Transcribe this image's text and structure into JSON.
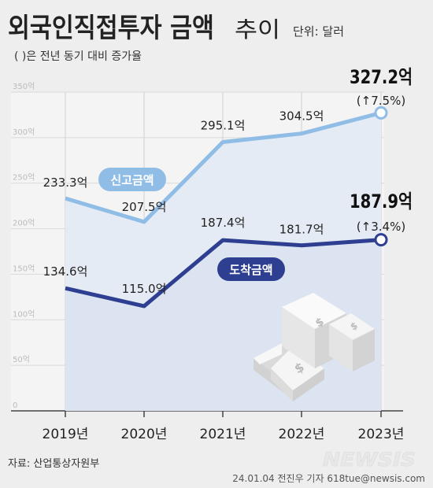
{
  "header": {
    "title": "외국인직접투자 금액",
    "title_suffix": "추이",
    "unit": "단위: 달러",
    "note": "( )은 전년 동기 대비 증가율"
  },
  "footer": {
    "source": "자료: 산업통상자원부",
    "credit": "24.01.04 전진우 기자 618tue@newsis.com",
    "logo": "NEWSIS"
  },
  "colors": {
    "background": "#eeeeee",
    "plot_fill": "#dde6f1",
    "series_reported": "#8fbde6",
    "series_arrived": "#2e3f91",
    "up_arrow": "#e11d1d",
    "axis_text": "#bbbbbb"
  },
  "chart_data": {
    "type": "line",
    "categories": [
      "2019년",
      "2020년",
      "2021년",
      "2022년",
      "2023년"
    ],
    "ylim": [
      0,
      350
    ],
    "yticks": [
      "0",
      "50억",
      "100억",
      "150억",
      "200억",
      "250억",
      "300억",
      "350억"
    ],
    "series": [
      {
        "name": "신고금액",
        "values": [
          233.3,
          207.5,
          295.1,
          304.5,
          327.2
        ],
        "labels": [
          "233.3억",
          "207.5억",
          "295.1억",
          "304.5억",
          "327.2억"
        ],
        "change_label": "(↑7.5%)"
      },
      {
        "name": "도착금액",
        "values": [
          134.6,
          115.0,
          187.4,
          181.7,
          187.9
        ],
        "labels": [
          "134.6억",
          "115.0억",
          "187.4억",
          "181.7억",
          "187.9억"
        ],
        "change_label": "(↑3.4%)"
      }
    ]
  }
}
